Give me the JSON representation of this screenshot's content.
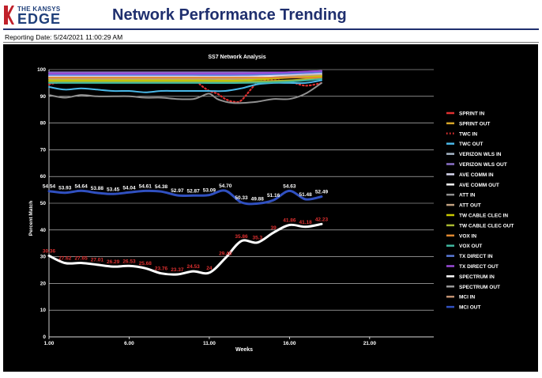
{
  "header": {
    "logo_line1": "THE KANSYS",
    "logo_line2": "EDGE",
    "title": "Network Performance Trending",
    "reporting_date": "Reporting Date: 5/24/2021 11:00:29 AM"
  },
  "colors": {
    "brand": "#1f2f6e",
    "chart_background": "#000000",
    "logo_accent": "#c0202a"
  },
  "chart_data": {
    "type": "line",
    "title": "SS7 Network Analysis",
    "xlabel": "Weeks",
    "ylabel": "Percent Match",
    "xlim": [
      1,
      25
    ],
    "ylim": [
      0,
      100
    ],
    "x_ticks": [
      "1.00",
      "6.00",
      "11.00",
      "16.00",
      "21.00"
    ],
    "x_tick_values": [
      1,
      6,
      11,
      16,
      21
    ],
    "y_ticks": [
      "0",
      "10",
      "20",
      "30",
      "40",
      "50",
      "60",
      "70",
      "80",
      "90",
      "100"
    ],
    "grid": true,
    "legend_position": "right",
    "series": [
      {
        "name": "SPRINT IN",
        "color": "#e03030",
        "style": "solid",
        "x": [],
        "values": []
      },
      {
        "name": "SPRINT OUT",
        "color": "#d8a628",
        "style": "solid",
        "x": [],
        "values": []
      },
      {
        "name": "TWC IN",
        "color": "#e03030",
        "style": "dotted",
        "x": [
          1,
          2,
          3,
          4,
          5,
          6,
          7,
          8,
          9,
          10,
          10.5,
          11,
          11.5,
          12,
          12.5,
          13,
          14,
          15,
          16,
          17,
          18
        ],
        "values": [
          94.5,
          95.5,
          96,
          96.5,
          97,
          97.5,
          97.5,
          97,
          97,
          96.5,
          94,
          92,
          91,
          89,
          88,
          88.5,
          95,
          96,
          95.5,
          94,
          95
        ]
      },
      {
        "name": "TWC OUT",
        "color": "#4ab8e8",
        "style": "solid",
        "x": [
          1,
          2,
          3,
          4,
          5,
          6,
          7,
          8,
          9,
          10,
          11,
          12,
          13,
          14,
          15,
          16,
          17,
          18
        ],
        "values": [
          93.5,
          92.5,
          93,
          92.5,
          92,
          92,
          91.5,
          92,
          92,
          92,
          92,
          92,
          93,
          94.5,
          95,
          95,
          95,
          96
        ]
      },
      {
        "name": "VERIZON WLS IN",
        "color": "#a7b7c7",
        "style": "solid",
        "x": [
          1,
          4,
          7,
          10,
          13,
          16,
          18
        ],
        "values": [
          98,
          98.5,
          98.5,
          98.5,
          98.5,
          99,
          99
        ]
      },
      {
        "name": "VERIZON WLS OUT",
        "color": "#8a70c8",
        "style": "solid",
        "x": [
          1,
          4,
          7,
          10,
          13,
          16,
          18
        ],
        "values": [
          99,
          99,
          99,
          99,
          99,
          99,
          99.5
        ]
      },
      {
        "name": "AVE COMM IN",
        "color": "#d8d8f0",
        "style": "solid",
        "x": [
          1,
          4,
          7,
          10,
          13,
          16,
          18
        ],
        "values": [
          97.5,
          97.5,
          97.5,
          97.5,
          97.5,
          98,
          98.5
        ]
      },
      {
        "name": "AVE COMM OUT",
        "color": "#ffffff",
        "style": "solid",
        "x": [
          1,
          4,
          7,
          10,
          13,
          16,
          18
        ],
        "values": [
          97,
          97,
          97,
          97,
          97,
          97.5,
          98
        ]
      },
      {
        "name": "ATT IN",
        "color": "#909090",
        "style": "solid",
        "x": [
          1,
          2,
          3,
          4,
          5,
          6,
          7,
          8,
          9,
          10,
          10.5,
          11,
          11.5,
          12,
          12.5,
          13,
          14,
          15,
          16,
          17,
          18
        ],
        "values": [
          90.5,
          89.5,
          90.5,
          90,
          90,
          90,
          89.5,
          89.5,
          89,
          89,
          90,
          91,
          89,
          88,
          87.5,
          87.5,
          88,
          89,
          89,
          91,
          95
        ]
      },
      {
        "name": "ATT OUT",
        "color": "#c0a080",
        "style": "solid",
        "x": [
          1,
          4,
          7,
          10,
          13,
          16,
          18
        ],
        "values": [
          96.5,
          96.5,
          96.5,
          96.5,
          96.5,
          97.5,
          98
        ]
      },
      {
        "name": "TW CABLE CLEC IN",
        "color": "#c8c800",
        "style": "solid",
        "x": [
          1,
          4,
          7,
          10,
          13,
          16,
          18
        ],
        "values": [
          96,
          96,
          96,
          96,
          96,
          97,
          97.5
        ]
      },
      {
        "name": "TW CABLE CLEC OUT",
        "color": "#a8b830",
        "style": "solid",
        "x": [
          1,
          4,
          7,
          10,
          13,
          16,
          18
        ],
        "values": [
          95.5,
          95.5,
          95.5,
          95.5,
          95.5,
          96,
          97
        ]
      },
      {
        "name": "VOX IN",
        "color": "#e08830",
        "style": "solid",
        "x": [
          1,
          4,
          7,
          10,
          13,
          16,
          18
        ],
        "values": [
          97,
          97,
          97,
          97,
          97,
          97,
          97
        ]
      },
      {
        "name": "VOX OUT",
        "color": "#40b8a0",
        "style": "solid",
        "x": [
          1,
          4,
          7,
          10,
          13,
          16,
          18
        ],
        "values": [
          95,
          95,
          95,
          95,
          95,
          95.5,
          96.5
        ]
      },
      {
        "name": "TX DIRECT IN",
        "color": "#5a7ad8",
        "style": "solid",
        "x": [
          1,
          4,
          7,
          10,
          13,
          16,
          18
        ],
        "values": [
          98,
          98,
          98,
          98,
          98,
          98.5,
          99
        ]
      },
      {
        "name": "TX DIRECT OUT",
        "color": "#9a4ad8",
        "style": "solid",
        "x": [
          1,
          4,
          7,
          10,
          13,
          16,
          18
        ],
        "values": [
          98.5,
          98.5,
          98.5,
          98.5,
          98.5,
          99,
          99.5
        ]
      },
      {
        "name": "SPECTRUM IN",
        "color": "#ffffff",
        "style": "solid",
        "width": 3,
        "x": [
          1,
          2,
          3,
          4,
          5,
          6,
          7,
          8,
          9,
          10,
          11,
          12,
          13,
          14,
          15,
          16,
          17,
          18
        ],
        "values": [
          30.36,
          27.62,
          27.65,
          27.01,
          26.29,
          26.53,
          25.68,
          23.76,
          23.37,
          24.53,
          24.0,
          29.46,
          35.86,
          35.3,
          39.0,
          41.86,
          41.18,
          42.23
        ],
        "labels": [
          "30.36",
          "27.62",
          "27.65",
          "27.01",
          "26.29",
          "26.53",
          "25.68",
          "23.76",
          "23.37",
          "24.53",
          "24",
          "29.46",
          "35.86",
          "35.3",
          "39",
          "41.86",
          "41.18",
          "42.23"
        ],
        "label_color": "#e03030"
      },
      {
        "name": "SPECTRUM OUT",
        "color": "#9a9a9a",
        "style": "solid",
        "x": [],
        "values": []
      },
      {
        "name": "MCI IN",
        "color": "#c09070",
        "style": "solid",
        "x": [],
        "values": []
      },
      {
        "name": "MCI OUT",
        "color": "#3050c0",
        "style": "solid",
        "width": 3,
        "x": [
          1,
          2,
          3,
          4,
          5,
          6,
          7,
          8,
          9,
          10,
          11,
          12,
          13,
          14,
          15,
          16,
          17,
          18
        ],
        "values": [
          54.54,
          53.93,
          54.64,
          53.88,
          53.45,
          54.04,
          54.61,
          54.38,
          52.97,
          52.87,
          53.09,
          54.7,
          50.33,
          49.88,
          51.16,
          54.63,
          51.48,
          52.49
        ],
        "labels": [
          "54.54",
          "53.93",
          "54.64",
          "53.88",
          "53.45",
          "54.04",
          "54.61",
          "54.38",
          "52.97",
          "52.87",
          "53.09",
          "54.70",
          "50.33",
          "49.88",
          "51.16",
          "54.63",
          "51.48",
          "52.49"
        ],
        "label_color": "#ffffff"
      }
    ]
  }
}
